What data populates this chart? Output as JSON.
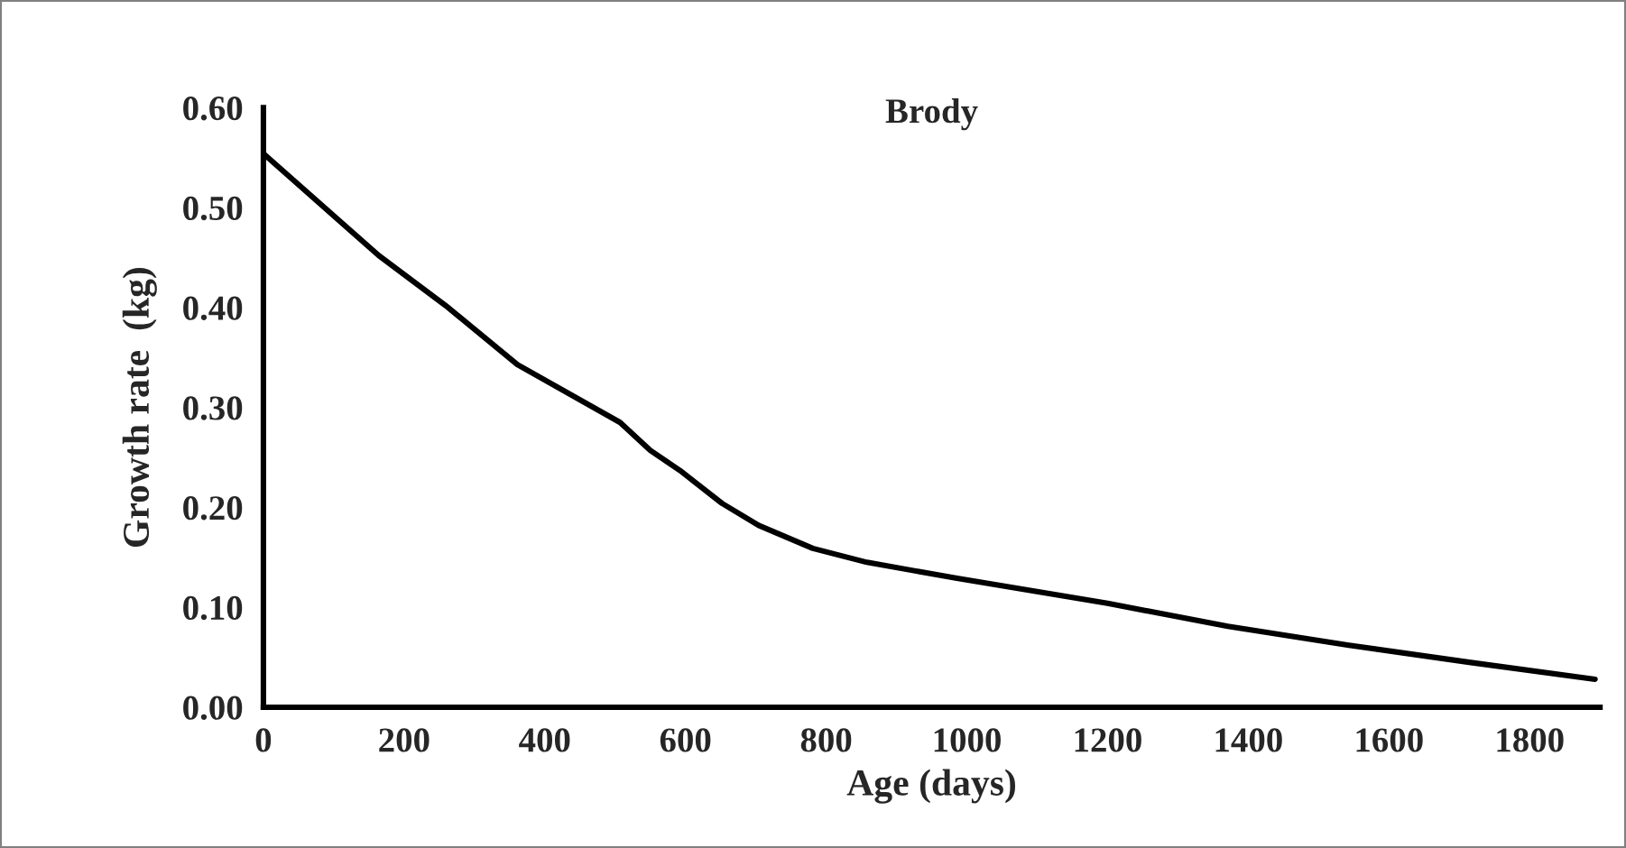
{
  "chart_data": {
    "type": "line",
    "title": "Brody",
    "xlabel": "Age (days)",
    "ylabel": "Growth rate  (kg)",
    "x": [
      0,
      164,
      259,
      361,
      507,
      550,
      592,
      652,
      704,
      781,
      858,
      986,
      1200,
      1371,
      1543,
      1714,
      1893
    ],
    "series": [
      {
        "color": "#000000",
        "values": [
          0.554,
          0.452,
          0.402,
          0.343,
          0.285,
          0.257,
          0.237,
          0.204,
          0.182,
          0.159,
          0.145,
          0.129,
          0.104,
          0.081,
          0.062,
          0.045,
          0.028
        ]
      }
    ],
    "xlim": [
      0,
      1900
    ],
    "ylim": [
      0,
      0.6
    ],
    "xticks": [
      0,
      200,
      400,
      600,
      800,
      1000,
      1200,
      1400,
      1600,
      1800
    ],
    "yticks": [
      {
        "value": 0,
        "label": "0.00"
      },
      {
        "value": 0.1,
        "label": "0.10"
      },
      {
        "value": 0.2,
        "label": "0.20"
      },
      {
        "value": 0.3,
        "label": "0.30"
      },
      {
        "value": 0.4,
        "label": "0.40"
      },
      {
        "value": 0.5,
        "label": "0.50"
      },
      {
        "value": 0.6,
        "label": "0.60"
      }
    ],
    "grid": false,
    "legend": false,
    "marker": "none",
    "line_style": "solid"
  }
}
